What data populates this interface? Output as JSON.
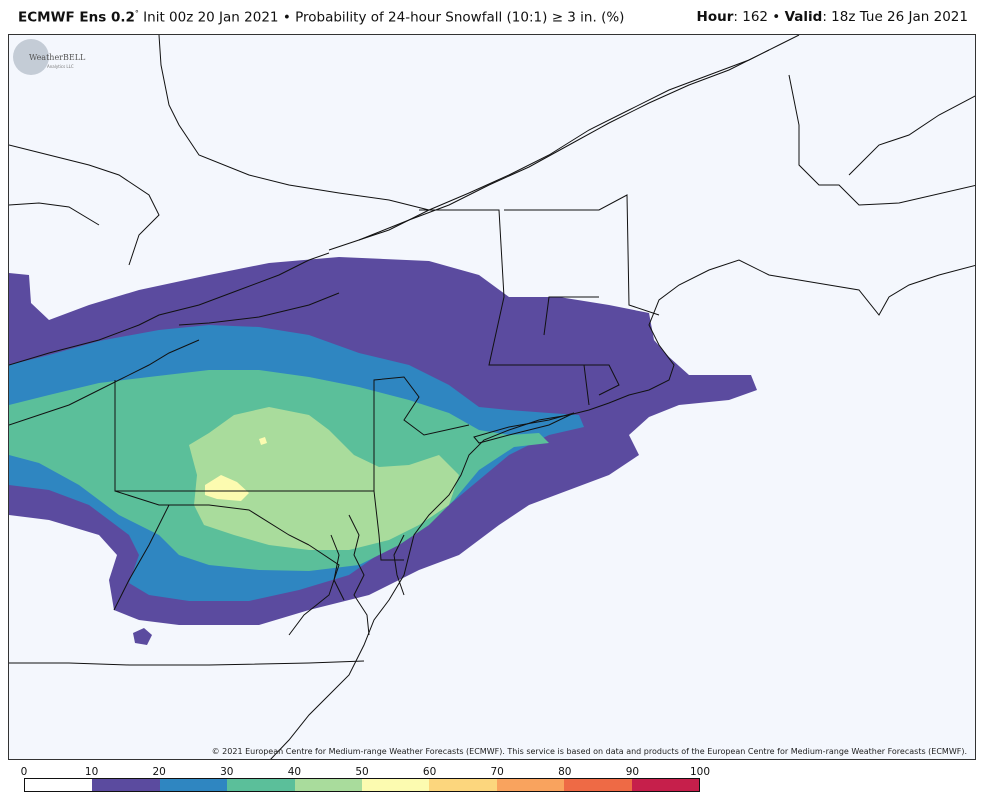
{
  "header": {
    "model": "ECMWF Ens 0.2",
    "degree": "°",
    "init": "Init 00z 20 Jan 2021",
    "bullet": "•",
    "product": "Probability of 24-hour Snowfall (10:1)",
    "threshold": "≥  3 in. (%)",
    "hour_label": "Hour",
    "hour_value": ": 162",
    "valid_label": "Valid",
    "valid_value": ": 18z Tue 26 Jan 2021"
  },
  "map": {
    "copyright": "© 2021 European Centre for Medium-range Weather Forecasts (ECMWF). This service is based on data and products of the European Centre for Medium-range Weather Forecasts (ECMWF).",
    "logo_text": "WeatherBELL",
    "logo_subtext": "Analytics LLC",
    "background_color": "#f4f7fd"
  },
  "colorbar": {
    "ticks": [
      "0",
      "10",
      "20",
      "30",
      "40",
      "50",
      "60",
      "70",
      "80",
      "90",
      "100"
    ],
    "colors": [
      "#ffffff",
      "#5b4b9f",
      "#2f86c1",
      "#5bbf9a",
      "#a9dc9c",
      "#fcfbb0",
      "#fcd67d",
      "#f9a35e",
      "#ee6a45",
      "#c61f4b"
    ]
  }
}
